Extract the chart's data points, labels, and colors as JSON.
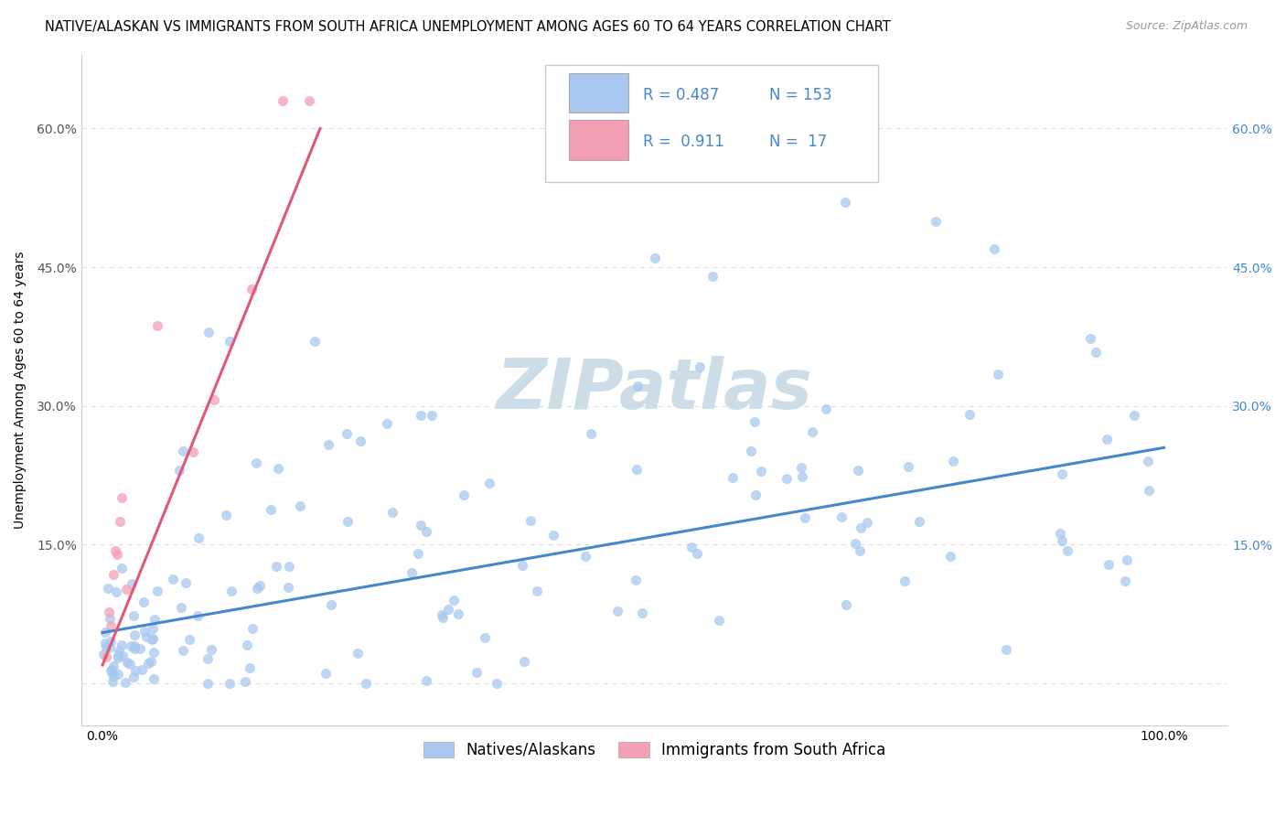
{
  "title": "NATIVE/ALASKAN VS IMMIGRANTS FROM SOUTH AFRICA UNEMPLOYMENT AMONG AGES 60 TO 64 YEARS CORRELATION CHART",
  "source": "Source: ZipAtlas.com",
  "ylabel_label": "Unemployment Among Ages 60 to 64 years",
  "ytick_values": [
    0.0,
    0.15,
    0.3,
    0.45,
    0.6
  ],
  "ytick_labels": [
    "",
    "15.0%",
    "30.0%",
    "45.0%",
    "60.0%"
  ],
  "xtick_values": [
    0.0,
    1.0
  ],
  "xtick_labels": [
    "0.0%",
    "100.0%"
  ],
  "xlim": [
    -0.02,
    1.06
  ],
  "ylim": [
    -0.045,
    0.68
  ],
  "legend_blue_R": "0.487",
  "legend_blue_N": "153",
  "legend_pink_R": "0.911",
  "legend_pink_N": "17",
  "legend_blue_label": "Natives/Alaskans",
  "legend_pink_label": "Immigrants from South Africa",
  "blue_scatter_color": "#a8c8f0",
  "pink_scatter_color": "#f4a0b4",
  "blue_line_color": "#4488cc",
  "pink_line_color": "#e05878",
  "blue_line_x": [
    0.0,
    1.0
  ],
  "blue_line_y": [
    0.055,
    0.255
  ],
  "pink_line_x": [
    0.0,
    0.205
  ],
  "pink_line_y": [
    0.02,
    0.6
  ],
  "watermark": "ZIPatlas",
  "watermark_color": "#ccdde8",
  "bg_color": "#ffffff",
  "grid_color": "#dddddd",
  "title_fontsize": 10.5,
  "source_fontsize": 9,
  "ylabel_fontsize": 10,
  "tick_fontsize": 10,
  "legend_fontsize": 12,
  "right_tick_color": "#4488cc",
  "left_tick_color": "#555555"
}
